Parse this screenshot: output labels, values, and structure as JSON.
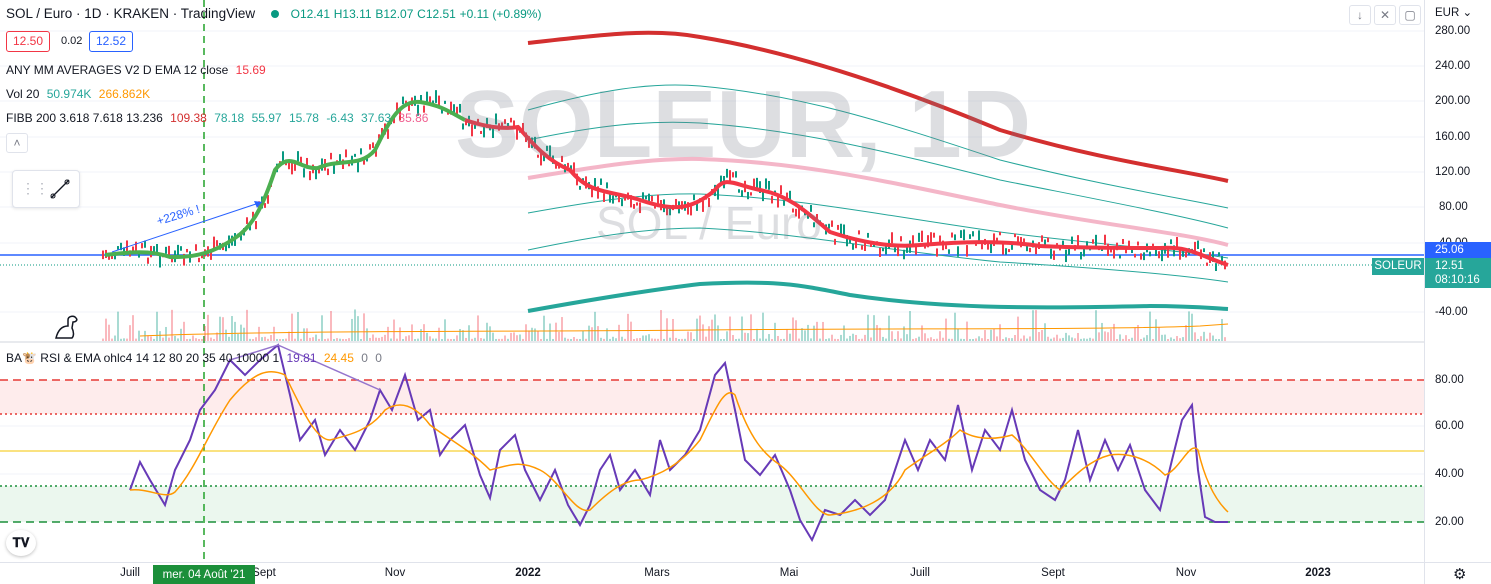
{
  "header": {
    "symbol_title": "SOL / Euro · 1D · KRAKEN · TradingView",
    "ohlc": {
      "o": "O12.41",
      "h": "H13.11",
      "b": "B12.07",
      "c": "C12.51",
      "change": "+0.11 (+0.89%)"
    },
    "sell_price": "12.50",
    "spread": "0.02",
    "buy_price": "12.52"
  },
  "indicators": {
    "ma": {
      "label": "ANY MM AVERAGES V2 D EMA 12 close",
      "value": "15.69"
    },
    "vol": {
      "label": "Vol 20",
      "v1": "50.974K",
      "v2": "266.862K"
    },
    "fibb": {
      "label": "FIBB 200 3.618 7.618 13.236",
      "v1": "109.38",
      "v2": "78.18",
      "v3": "55.97",
      "v4": "15.78",
      "v5": "-6.43",
      "v6": "37.63",
      "v7": "35.86"
    },
    "rsi": {
      "label": "BA🐮 RSI & EMA ohlc4 14 12 80 20 35 40 10000 1",
      "v1": "19.81",
      "v2": "24.45",
      "v3": "0",
      "v4": "0"
    }
  },
  "watermark": {
    "big": "SOLEUR, 1D",
    "small": "SOL / Euro"
  },
  "annotation": {
    "gain": "+228% !"
  },
  "price_axis": {
    "currency": "EUR",
    "ticks": [
      "280.00",
      "240.00",
      "200.00",
      "160.00",
      "120.00",
      "80.00",
      "40.00",
      "-40.00"
    ],
    "level_badge": "25.06",
    "symbol_badge": "SOLEUR",
    "last_price": "12.51",
    "countdown": "08:10:16"
  },
  "rsi_axis": {
    "ticks": [
      "80.00",
      "60.00",
      "40.00",
      "20.00"
    ]
  },
  "time_axis": {
    "labels": [
      "Juill",
      "Sept",
      "Nov",
      "2022",
      "Mars",
      "Mai",
      "Juill",
      "Sept",
      "Nov",
      "2023"
    ],
    "highlight": "mer. 04 Août '21"
  },
  "colors": {
    "up": "#089981",
    "down": "#f23645",
    "accent": "#2962ff",
    "rsi": "#673ab7",
    "ema": "#ff9800"
  }
}
